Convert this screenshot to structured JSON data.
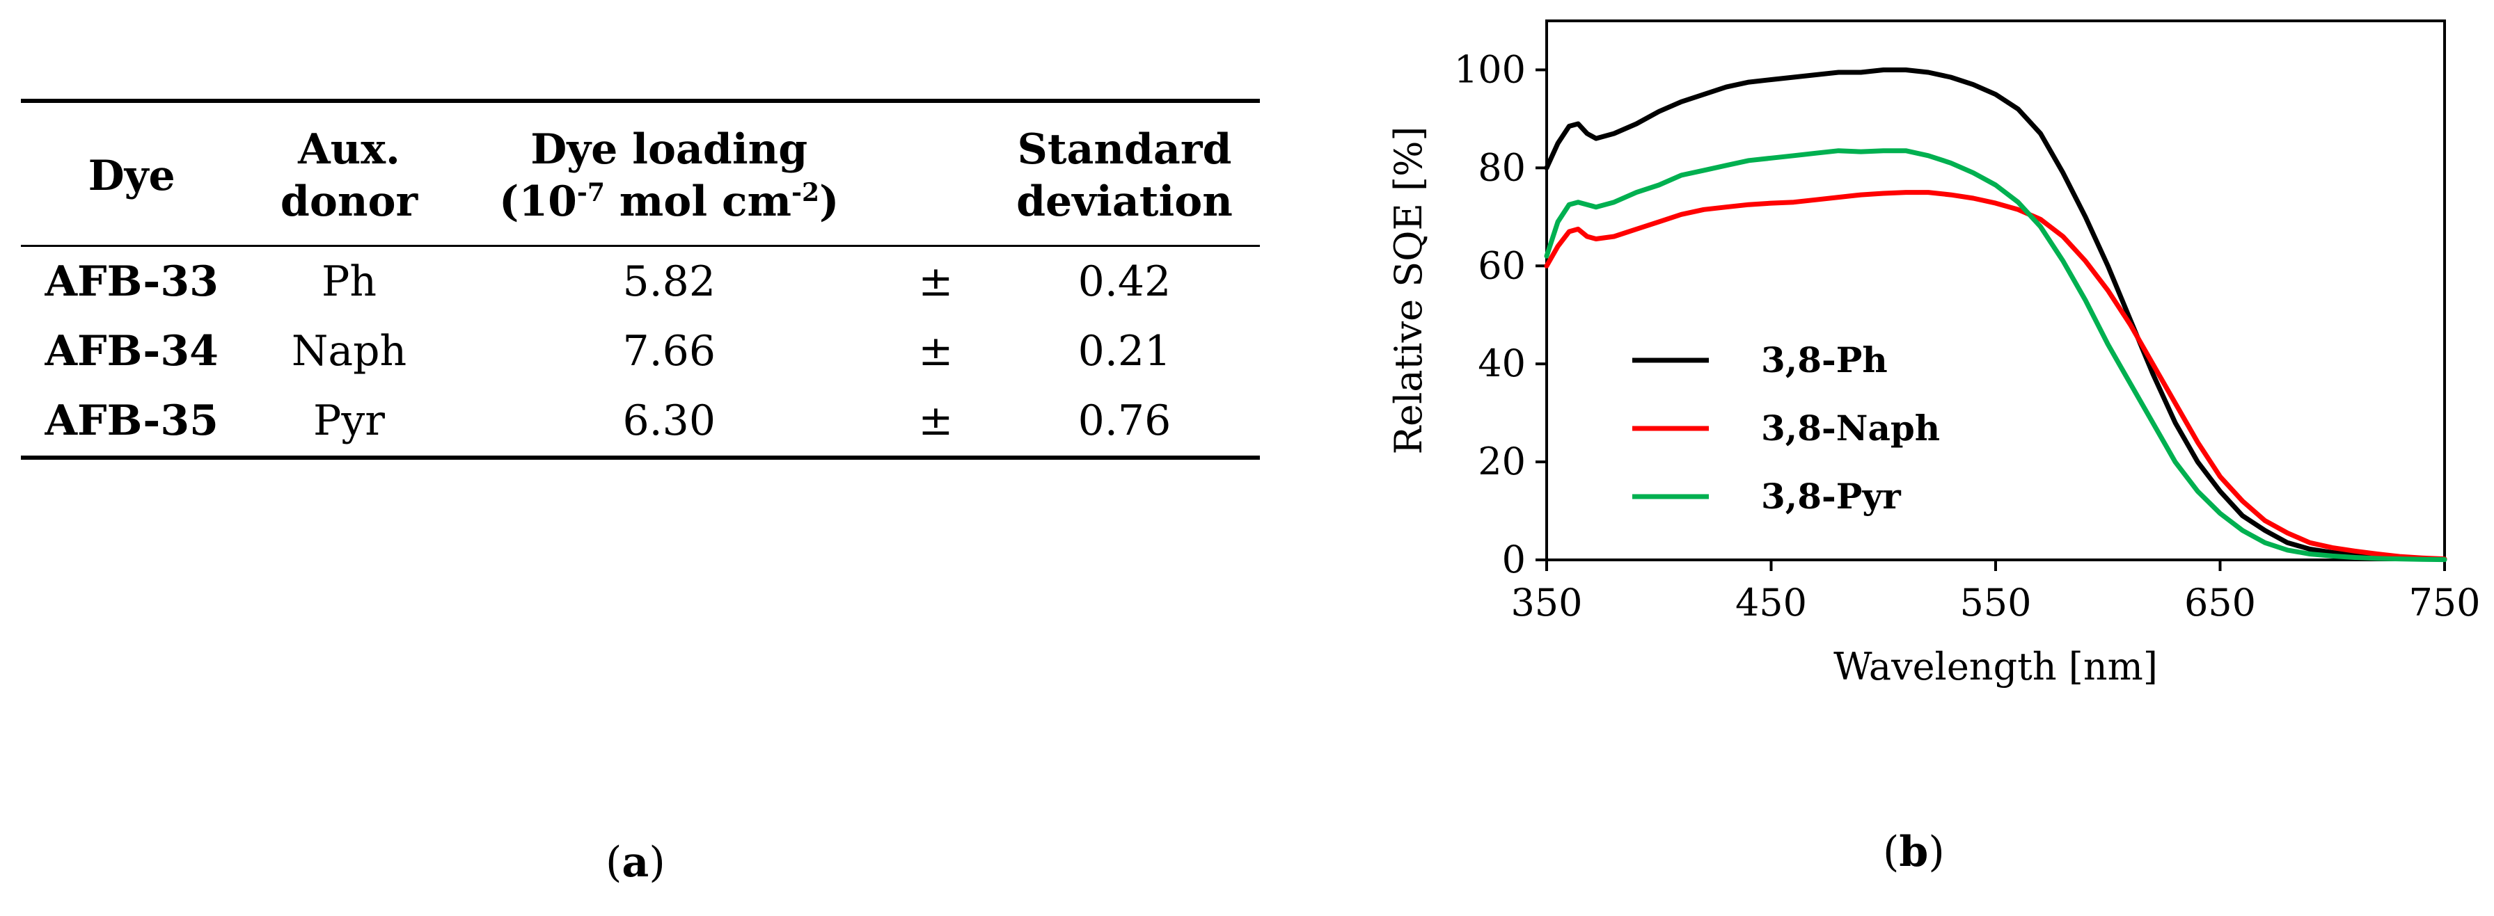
{
  "table": {
    "headers": {
      "dye": "Dye",
      "aux_line1": "Aux.",
      "aux_line2": "donor",
      "loading_line1": "Dye loading",
      "loading_line2_pre": "(10",
      "loading_line2_sup1": "-7",
      "loading_line2_mid": " mol cm",
      "loading_line2_sup2": "-2",
      "loading_line2_post": ")",
      "sd_line1": "Standard",
      "sd_line2": "deviation"
    },
    "rows": [
      {
        "dye": "AFB-33",
        "aux": "Ph",
        "loading": "5.82",
        "pm": "±",
        "sd": "0.42"
      },
      {
        "dye": "AFB-34",
        "aux": "Naph",
        "loading": "7.66",
        "pm": "±",
        "sd": "0.21"
      },
      {
        "dye": "AFB-35",
        "aux": "Pyr",
        "loading": "6.30",
        "pm": "±",
        "sd": "0.76"
      }
    ]
  },
  "captions": {
    "a_open": "(",
    "a_letter": "a",
    "a_close": ")",
    "b_open": "(",
    "b_letter": "b",
    "b_close": ")"
  },
  "chart_data": {
    "type": "line",
    "title": "",
    "xlabel": "Wavelength [nm]",
    "ylabel": "Relative SQE [%]",
    "xlim": [
      350,
      750
    ],
    "ylim": [
      0,
      110
    ],
    "xticks": [
      350,
      450,
      550,
      650,
      750
    ],
    "yticks": [
      0,
      20,
      40,
      60,
      80,
      100
    ],
    "legend_position": "middle-left",
    "series": [
      {
        "name": "3,8-Ph",
        "color": "#000000",
        "x": [
          350,
          355,
          360,
          364,
          368,
          372,
          380,
          390,
          400,
          410,
          420,
          430,
          440,
          450,
          460,
          470,
          480,
          490,
          500,
          510,
          520,
          530,
          540,
          550,
          560,
          570,
          580,
          590,
          600,
          610,
          620,
          630,
          640,
          650,
          660,
          670,
          680,
          690,
          700,
          710,
          720,
          730,
          740,
          750
        ],
        "y": [
          80,
          85,
          88.5,
          89,
          87,
          86,
          87,
          89,
          91.5,
          93.5,
          95,
          96.5,
          97.5,
          98,
          98.5,
          99,
          99.5,
          99.5,
          100,
          100,
          99.5,
          98.5,
          97,
          95,
          92,
          87,
          79,
          70,
          60,
          49,
          38,
          28,
          20,
          14,
          9,
          6,
          3.5,
          2.2,
          1.5,
          1,
          0.6,
          0.3,
          0.2,
          0.1
        ]
      },
      {
        "name": "3,8-Naph",
        "color": "#ff0000",
        "x": [
          350,
          355,
          360,
          364,
          368,
          372,
          380,
          390,
          400,
          410,
          420,
          430,
          440,
          450,
          460,
          470,
          480,
          490,
          500,
          510,
          520,
          530,
          540,
          550,
          560,
          570,
          580,
          590,
          600,
          610,
          620,
          630,
          640,
          650,
          660,
          670,
          680,
          690,
          700,
          710,
          720,
          730,
          740,
          750
        ],
        "y": [
          60,
          64,
          67,
          67.5,
          66,
          65.5,
          66,
          67.5,
          69,
          70.5,
          71.5,
          72,
          72.5,
          72.8,
          73,
          73.5,
          74,
          74.5,
          74.8,
          75,
          75,
          74.5,
          73.8,
          72.8,
          71.5,
          69.5,
          66,
          61,
          55,
          48,
          40,
          32,
          24,
          17,
          12,
          8,
          5.5,
          3.5,
          2.5,
          1.8,
          1.2,
          0.7,
          0.4,
          0.2
        ]
      },
      {
        "name": "3,8-Pyr",
        "color": "#00b050",
        "x": [
          350,
          355,
          360,
          364,
          368,
          372,
          380,
          390,
          400,
          410,
          420,
          430,
          440,
          450,
          460,
          470,
          480,
          490,
          500,
          510,
          520,
          530,
          540,
          550,
          560,
          570,
          580,
          590,
          600,
          610,
          620,
          630,
          640,
          650,
          660,
          670,
          680,
          690,
          700,
          710,
          720,
          730,
          740,
          750
        ],
        "y": [
          62,
          69,
          72.5,
          73,
          72.5,
          72,
          73,
          75,
          76.5,
          78.5,
          79.5,
          80.5,
          81.5,
          82,
          82.5,
          83,
          83.5,
          83.3,
          83.5,
          83.5,
          82.5,
          81,
          79,
          76.5,
          73,
          68,
          61,
          53,
          44,
          36,
          28,
          20,
          14,
          9.5,
          6,
          3.5,
          2,
          1.2,
          0.8,
          0.5,
          0.3,
          0.2,
          0.1,
          0.05
        ]
      }
    ]
  }
}
